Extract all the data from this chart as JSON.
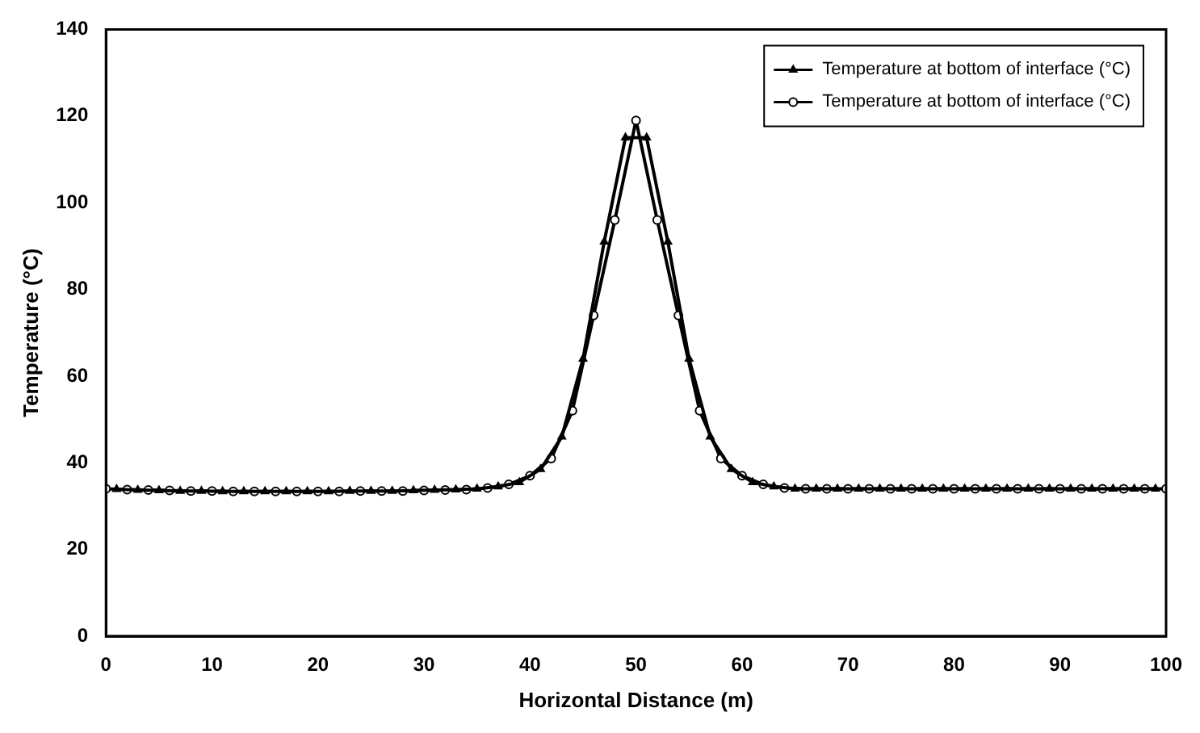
{
  "chart_data": {
    "type": "line",
    "xlabel": "Horizontal Distance (m)",
    "ylabel": "Temperature (°C)",
    "xlim": [
      0,
      100
    ],
    "xticks": [
      0,
      10,
      20,
      30,
      40,
      50,
      60,
      70,
      80,
      90,
      100
    ],
    "ylim": [
      0,
      140
    ],
    "yticks": [
      0,
      20,
      40,
      60,
      80,
      100,
      120,
      140
    ],
    "grid": false,
    "legend": "top right",
    "line_style": "solid",
    "series": [
      {
        "name": "Temperature at bottom of interface (°C)",
        "color": "#000000",
        "marker": "triangle",
        "x": [
          1,
          3,
          5,
          7,
          9,
          11,
          13,
          15,
          17,
          19,
          21,
          23,
          25,
          27,
          29,
          31,
          33,
          35,
          37,
          39,
          41,
          43,
          45,
          47,
          49,
          51,
          53,
          55,
          57,
          59,
          61,
          63,
          65,
          67,
          69,
          71,
          73,
          75,
          77,
          79,
          81,
          83,
          85,
          87,
          89,
          91,
          93,
          95,
          97,
          99
        ],
        "values": [
          33.9,
          33.7,
          33.6,
          33.5,
          33.5,
          33.4,
          33.4,
          33.4,
          33.4,
          33.4,
          33.4,
          33.5,
          33.5,
          33.5,
          33.6,
          33.7,
          33.8,
          34,
          34.5,
          35.5,
          38.5,
          46,
          64,
          91,
          115,
          115,
          91,
          64,
          46,
          38.5,
          35.5,
          34.5,
          34,
          34,
          34,
          34,
          34,
          34,
          34,
          34,
          34,
          34,
          34,
          34,
          34,
          34,
          34,
          34,
          34,
          34
        ]
      },
      {
        "name": "Temperature at bottom of interface (°C)",
        "color": "#000000",
        "marker": "circle",
        "x": [
          0,
          2,
          4,
          6,
          8,
          10,
          12,
          14,
          16,
          18,
          20,
          22,
          24,
          26,
          28,
          30,
          32,
          34,
          36,
          38,
          40,
          42,
          44,
          46,
          48,
          50,
          52,
          54,
          56,
          58,
          60,
          62,
          64,
          66,
          68,
          70,
          72,
          74,
          76,
          78,
          80,
          82,
          84,
          86,
          88,
          90,
          92,
          94,
          96,
          98,
          100
        ],
        "values": [
          34,
          33.8,
          33.7,
          33.6,
          33.5,
          33.5,
          33.4,
          33.4,
          33.4,
          33.4,
          33.4,
          33.4,
          33.5,
          33.5,
          33.5,
          33.6,
          33.7,
          33.8,
          34.2,
          35,
          37,
          41,
          52,
          74,
          96,
          119,
          96,
          74,
          52,
          41,
          37,
          35,
          34.2,
          34,
          34,
          34,
          34,
          34,
          34,
          34,
          34,
          34,
          34,
          34,
          34,
          34,
          34,
          34,
          34,
          34,
          34
        ]
      }
    ]
  }
}
